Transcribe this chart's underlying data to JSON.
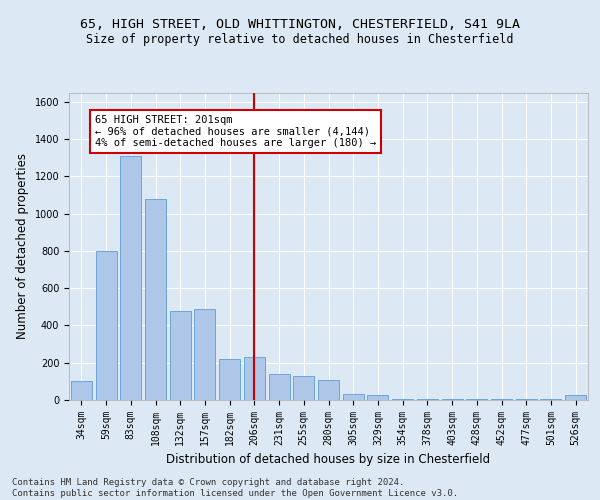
{
  "title_line1": "65, HIGH STREET, OLD WHITTINGTON, CHESTERFIELD, S41 9LA",
  "title_line2": "Size of property relative to detached houses in Chesterfield",
  "xlabel": "Distribution of detached houses by size in Chesterfield",
  "ylabel": "Number of detached properties",
  "categories": [
    "34sqm",
    "59sqm",
    "83sqm",
    "108sqm",
    "132sqm",
    "157sqm",
    "182sqm",
    "206sqm",
    "231sqm",
    "255sqm",
    "280sqm",
    "305sqm",
    "329sqm",
    "354sqm",
    "378sqm",
    "403sqm",
    "428sqm",
    "452sqm",
    "477sqm",
    "501sqm",
    "526sqm"
  ],
  "values": [
    100,
    800,
    1310,
    1080,
    480,
    490,
    220,
    230,
    140,
    130,
    105,
    30,
    28,
    5,
    5,
    5,
    5,
    5,
    5,
    5,
    28
  ],
  "bar_color": "#aec6e8",
  "bar_edge_color": "#5a9fd4",
  "vline_x_index": 7,
  "vline_color": "#cc0000",
  "annotation_text": "65 HIGH STREET: 201sqm\n← 96% of detached houses are smaller (4,144)\n4% of semi-detached houses are larger (180) →",
  "annotation_box_color": "#ffffff",
  "annotation_box_edgecolor": "#cc0000",
  "ylim": [
    0,
    1650
  ],
  "yticks": [
    0,
    200,
    400,
    600,
    800,
    1000,
    1200,
    1400,
    1600
  ],
  "footer_text": "Contains HM Land Registry data © Crown copyright and database right 2024.\nContains public sector information licensed under the Open Government Licence v3.0.",
  "bg_color": "#dce9f5",
  "plot_bg_color": "#dce9f5",
  "grid_color": "#ffffff",
  "title_fontsize": 9.5,
  "subtitle_fontsize": 8.5,
  "axis_label_fontsize": 8.5,
  "tick_fontsize": 7,
  "footer_fontsize": 6.5,
  "ann_fontsize": 7.5
}
